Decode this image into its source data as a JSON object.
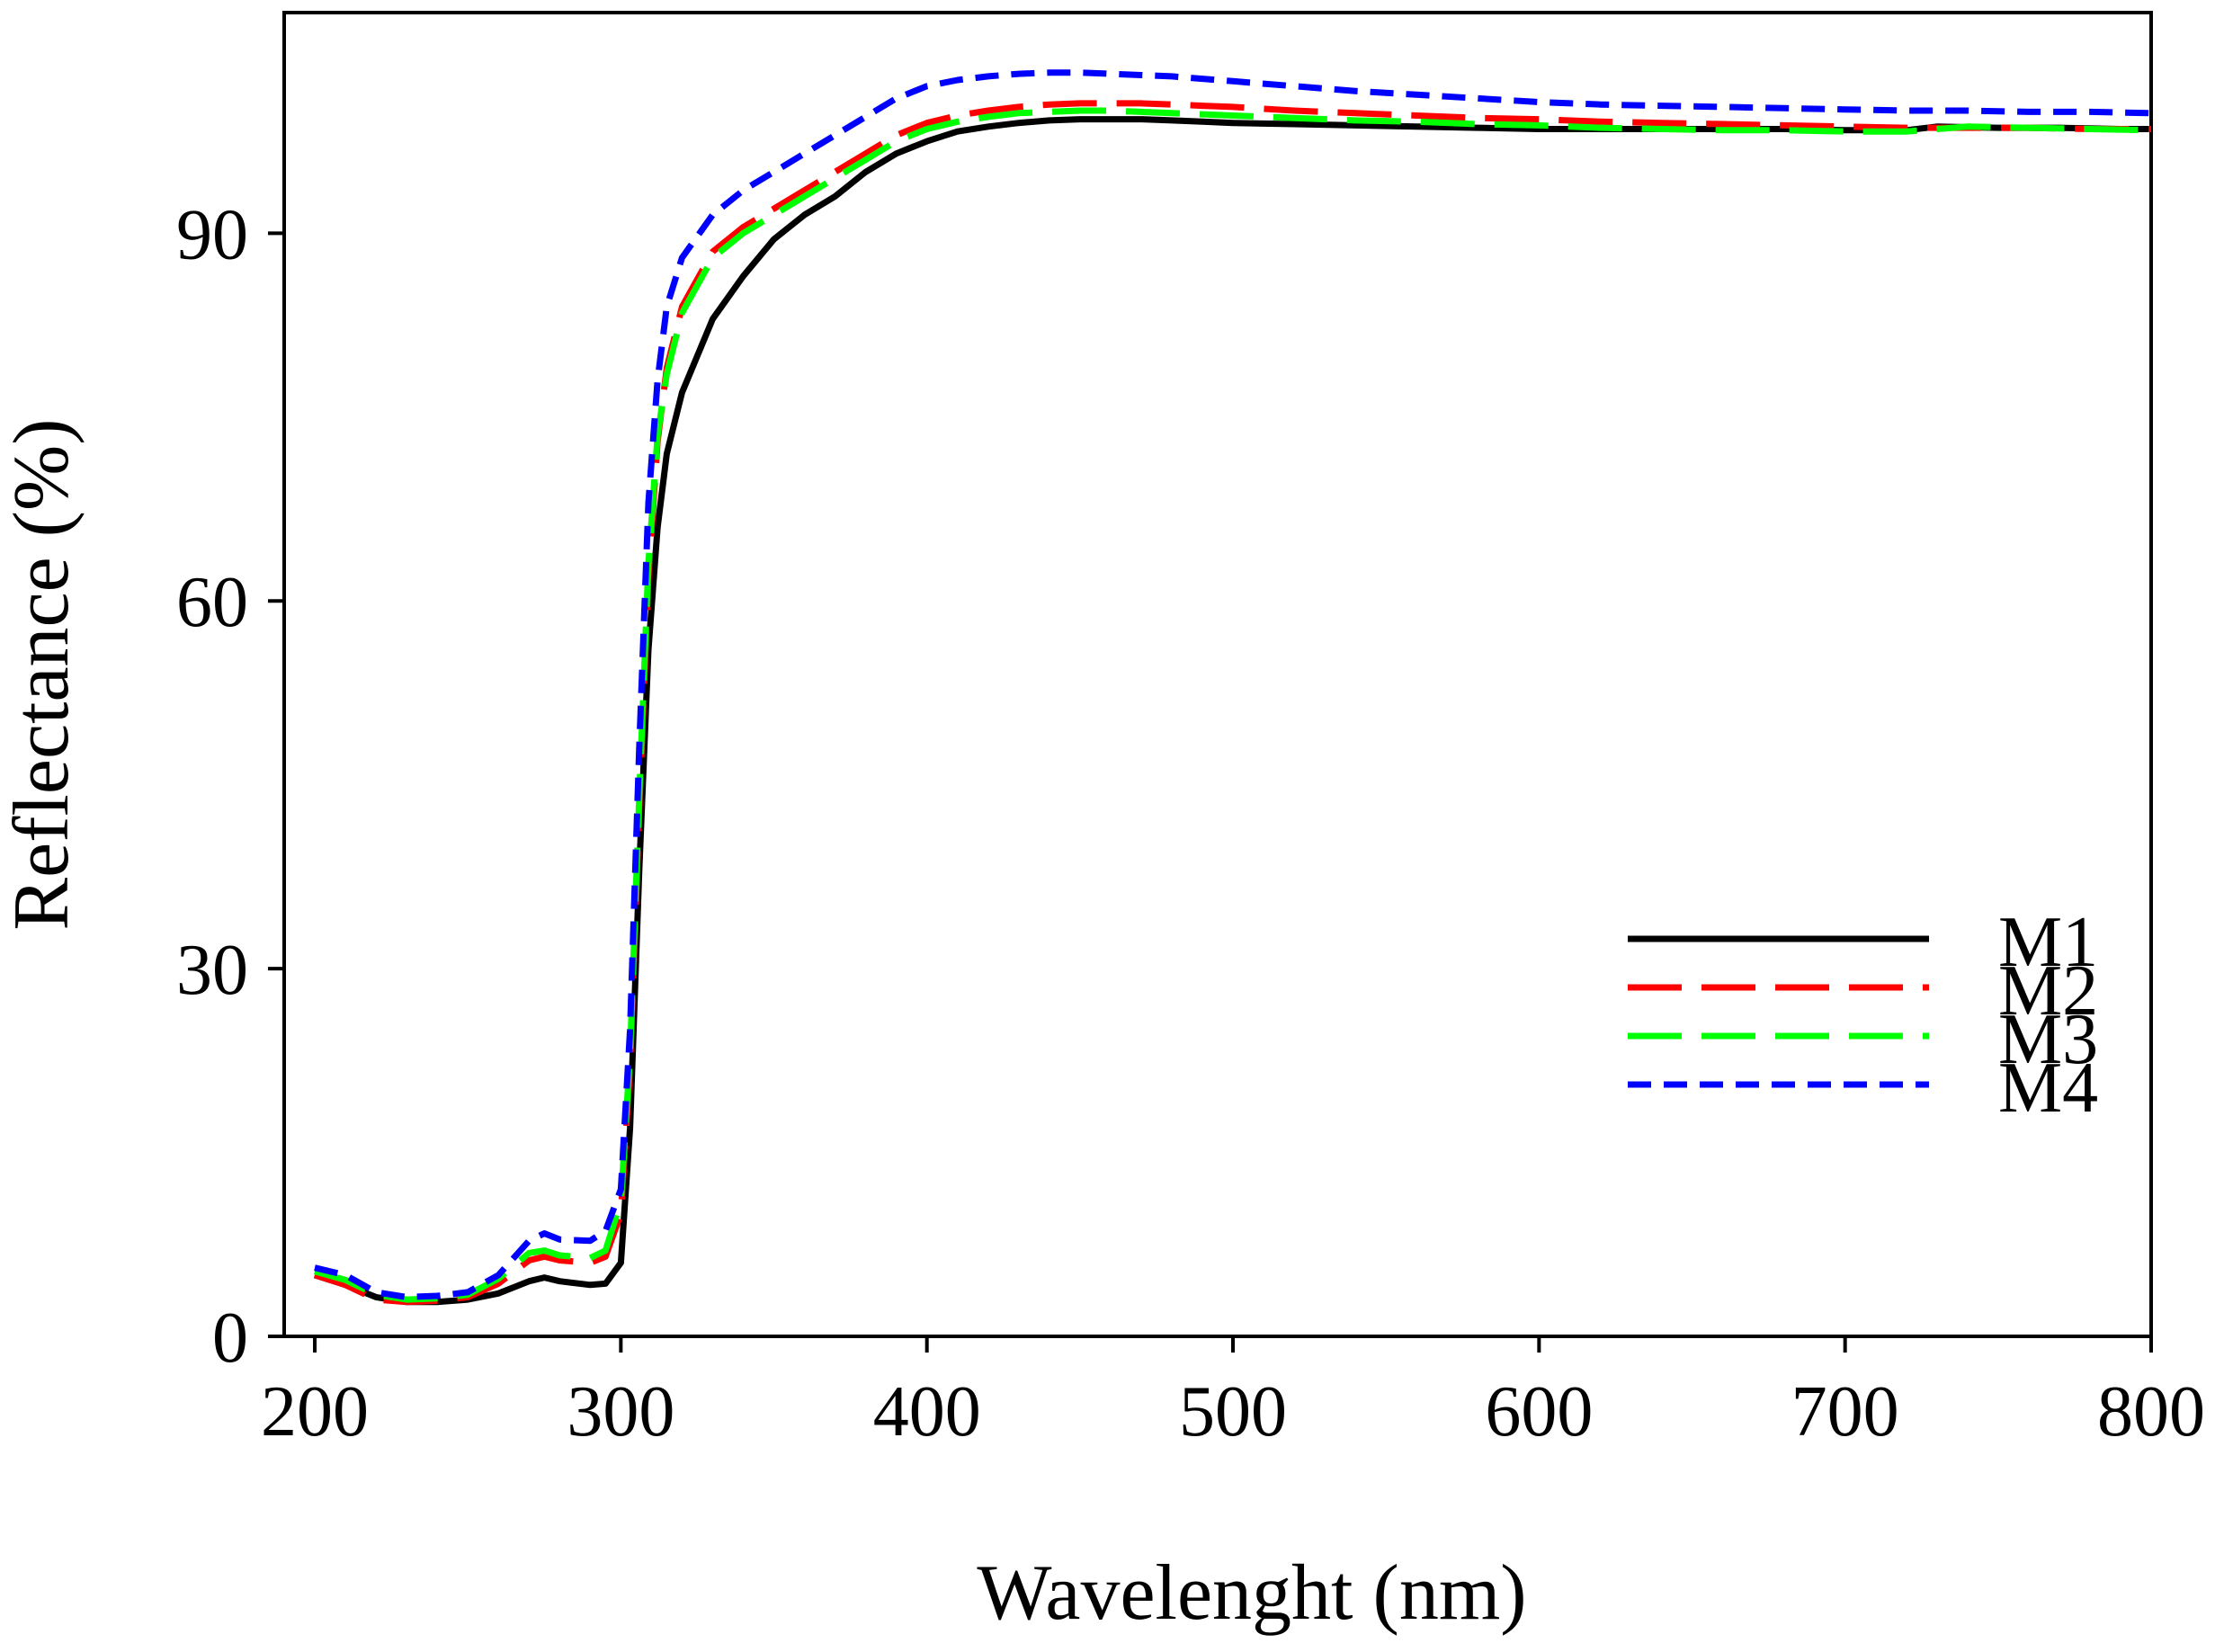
{
  "chart_data": {
    "type": "line",
    "title": "",
    "xlabel": "Wavelenght (nm)",
    "ylabel": "Reflectance (%)",
    "xlim": [
      190,
      800
    ],
    "ylim": [
      0,
      108
    ],
    "xticks": [
      200,
      300,
      400,
      500,
      600,
      700,
      800
    ],
    "yticks": [
      0,
      30,
      60,
      90
    ],
    "legend_position": "bottom-right",
    "grid": false,
    "series": [
      {
        "name": "M1",
        "color": "#000000",
        "dash": "solid",
        "x": [
          200,
          210,
          220,
          230,
          240,
          250,
          260,
          270,
          275,
          280,
          290,
          295,
          300,
          303,
          306,
          309,
          312,
          315,
          320,
          330,
          340,
          350,
          360,
          370,
          380,
          390,
          400,
          410,
          420,
          430,
          440,
          450,
          460,
          470,
          480,
          490,
          500,
          520,
          540,
          560,
          580,
          600,
          620,
          640,
          660,
          680,
          700,
          720,
          730,
          750,
          770,
          790,
          800
        ],
        "y": [
          5.0,
          4.2,
          3.2,
          2.8,
          2.8,
          3.0,
          3.5,
          4.5,
          4.8,
          4.5,
          4.2,
          4.3,
          6.0,
          17.0,
          38.0,
          56.0,
          66.0,
          72.0,
          77.0,
          83.0,
          86.5,
          89.5,
          91.5,
          93.0,
          95.0,
          96.5,
          97.5,
          98.3,
          98.7,
          99.0,
          99.2,
          99.3,
          99.3,
          99.3,
          99.2,
          99.1,
          99.0,
          98.9,
          98.8,
          98.7,
          98.6,
          98.5,
          98.5,
          98.5,
          98.5,
          98.5,
          98.4,
          98.4,
          98.7,
          98.6,
          98.6,
          98.5,
          98.5
        ]
      },
      {
        "name": "M2",
        "color": "#ff0000",
        "dash": "long",
        "x": [
          200,
          210,
          220,
          230,
          240,
          250,
          260,
          270,
          275,
          280,
          290,
          295,
          300,
          303,
          306,
          309,
          312,
          315,
          320,
          330,
          340,
          350,
          360,
          370,
          380,
          390,
          400,
          410,
          420,
          430,
          440,
          450,
          460,
          470,
          480,
          490,
          500,
          520,
          540,
          560,
          580,
          600,
          620,
          640,
          660,
          680,
          700,
          720,
          740,
          760,
          780,
          800
        ],
        "y": [
          5.0,
          4.2,
          3.0,
          2.8,
          2.9,
          3.2,
          4.3,
          6.2,
          6.5,
          6.2,
          6.0,
          6.5,
          10.0,
          22.0,
          43.0,
          62.0,
          73.0,
          79.0,
          84.0,
          88.5,
          90.5,
          92.0,
          93.5,
          95.0,
          96.5,
          98.0,
          99.0,
          99.6,
          100.0,
          100.3,
          100.5,
          100.6,
          100.6,
          100.6,
          100.5,
          100.4,
          100.3,
          100.0,
          99.8,
          99.6,
          99.4,
          99.3,
          99.1,
          99.0,
          98.9,
          98.8,
          98.7,
          98.6,
          98.6,
          98.6,
          98.5,
          98.5
        ]
      },
      {
        "name": "M3",
        "color": "#00ff00",
        "dash": "long",
        "x": [
          200,
          210,
          220,
          230,
          240,
          250,
          260,
          270,
          275,
          280,
          290,
          295,
          300,
          303,
          306,
          309,
          312,
          315,
          320,
          330,
          340,
          350,
          360,
          370,
          380,
          390,
          400,
          410,
          420,
          430,
          440,
          450,
          460,
          470,
          480,
          490,
          500,
          520,
          540,
          560,
          580,
          600,
          620,
          640,
          660,
          680,
          700,
          720,
          740,
          760,
          780,
          800
        ],
        "y": [
          5.3,
          4.6,
          3.4,
          3.0,
          3.1,
          3.4,
          4.7,
          6.8,
          7.0,
          6.6,
          6.4,
          7.0,
          11.0,
          23.0,
          44.0,
          63.0,
          73.5,
          78.5,
          83.5,
          88.0,
          90.0,
          91.5,
          93.0,
          94.5,
          96.0,
          97.5,
          98.5,
          99.1,
          99.5,
          99.8,
          99.9,
          100.0,
          100.0,
          99.9,
          99.8,
          99.7,
          99.6,
          99.4,
          99.2,
          99.1,
          98.9,
          98.8,
          98.6,
          98.5,
          98.4,
          98.4,
          98.3,
          98.3,
          98.7,
          98.6,
          98.5,
          98.4
        ]
      },
      {
        "name": "M4",
        "color": "#0000ff",
        "dash": "short",
        "x": [
          200,
          210,
          220,
          230,
          240,
          250,
          260,
          270,
          275,
          280,
          290,
          295,
          300,
          303,
          306,
          309,
          312,
          315,
          320,
          330,
          340,
          350,
          360,
          370,
          380,
          390,
          400,
          410,
          420,
          430,
          440,
          450,
          460,
          470,
          480,
          490,
          500,
          520,
          540,
          560,
          580,
          600,
          620,
          640,
          660,
          680,
          700,
          720,
          740,
          760,
          780,
          800
        ],
        "y": [
          5.6,
          5.0,
          3.6,
          3.2,
          3.3,
          3.6,
          5.0,
          7.8,
          8.4,
          7.9,
          7.8,
          8.6,
          12.0,
          25.0,
          48.0,
          68.0,
          78.0,
          84.0,
          88.0,
          91.5,
          93.5,
          95.0,
          96.5,
          98.0,
          99.5,
          101.0,
          102.0,
          102.5,
          102.8,
          103.0,
          103.1,
          103.1,
          103.0,
          102.9,
          102.8,
          102.6,
          102.4,
          102.0,
          101.6,
          101.3,
          101.0,
          100.7,
          100.5,
          100.4,
          100.3,
          100.2,
          100.1,
          100.0,
          100.0,
          99.9,
          99.9,
          99.8
        ]
      }
    ]
  }
}
